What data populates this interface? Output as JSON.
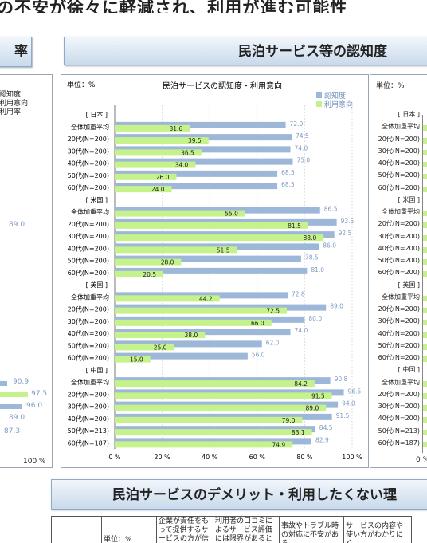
{
  "headline": "の不安が徐々に軽減され、利用が進む可能性",
  "left_tab": "率",
  "left_panel": {
    "legend": [
      "認知度",
      "利用意向",
      "利用率"
    ],
    "values": [
      "89.0",
      "90.9",
      "97.5",
      "96.0",
      "89.0",
      "87.3"
    ],
    "axis_end": "100 %"
  },
  "main_tab": "民泊サービス等の認知度",
  "right_panel": {
    "unit": "単位：%",
    "rows": [
      "[ 日本 ]",
      "全体加重平均",
      "20代(N=200)",
      "30代(N=200)",
      "40代(N=200)",
      "50代(N=200)",
      "60代(N=200)",
      "[ 米国 ]",
      "全体加重平均",
      "20代(N=200)",
      "30代(N=200)",
      "40代(N=200)",
      "50代(N=200)",
      "60代(N=200)",
      "[ 英国 ]",
      "全体加重平均",
      "20代(N=200)",
      "30代(N=200)",
      "40代(N=200)",
      "50代(N=200)",
      "60代(N=200)",
      "[ 中国 ]",
      "全体加重平均",
      "20代(N=200)",
      "30代(N=200)",
      "40代(N=200)",
      "50代(N=213)",
      "60代(N=187)"
    ],
    "axis_start": "0 %"
  },
  "bottom_tab": "民泊サービスのデメリット・利用したくない理",
  "bottom_table": {
    "unit": "単位：%",
    "headers": [
      "企業が責任をもって提供するサービスの方が信頼できる",
      "利用者の口コミによるサービス評価には限界があると思うか",
      "事故やトラブル時の対応に不安がある",
      "サービスの内容や使い方がわかりにく"
    ]
  },
  "chart_data": {
    "type": "bar",
    "orientation": "horizontal",
    "title": "民泊サービスの認知度・利用意向",
    "unit": "単位：%",
    "xlim": [
      0,
      100
    ],
    "ticks": [
      "0 %",
      "20 %",
      "40 %",
      "60 %",
      "80 %",
      "100 %"
    ],
    "legend_position": "top-right",
    "colors": {
      "認知度": "#9db7d9",
      "利用意向": "#c6f28c"
    },
    "categories": [
      "[ 日本 ]",
      "全体加重平均",
      "20代(N=200)",
      "30代(N=200)",
      "40代(N=200)",
      "50代(N=200)",
      "60代(N=200)",
      "[ 米国 ]",
      "全体加重平均",
      "20代(N=200)",
      "30代(N=200)",
      "40代(N=200)",
      "50代(N=200)",
      "60代(N=200)",
      "[ 英国 ]",
      "全体加重平均",
      "20代(N=200)",
      "30代(N=200)",
      "40代(N=200)",
      "50代(N=200)",
      "60代(N=200)",
      "[ 中国 ]",
      "全体加重平均",
      "20代(N=200)",
      "30代(N=200)",
      "40代(N=200)",
      "50代(N=213)",
      "60代(N=187)"
    ],
    "series": [
      {
        "name": "認知度",
        "values": [
          null,
          72.0,
          74.5,
          74.0,
          75.0,
          68.5,
          68.5,
          null,
          86.5,
          93.5,
          92.5,
          86.0,
          78.5,
          81.0,
          null,
          72.8,
          89.0,
          80.0,
          74.0,
          62.0,
          56.0,
          null,
          90.8,
          96.5,
          94.0,
          91.5,
          84.5,
          82.9
        ]
      },
      {
        "name": "利用意向",
        "values": [
          null,
          31.6,
          39.5,
          36.5,
          34.0,
          26.0,
          24.0,
          null,
          55.0,
          81.5,
          88.0,
          51.5,
          28.0,
          20.5,
          null,
          44.2,
          72.5,
          66.0,
          38.0,
          25.0,
          15.0,
          null,
          84.2,
          91.5,
          89.0,
          79.0,
          83.1,
          74.9
        ]
      }
    ]
  }
}
